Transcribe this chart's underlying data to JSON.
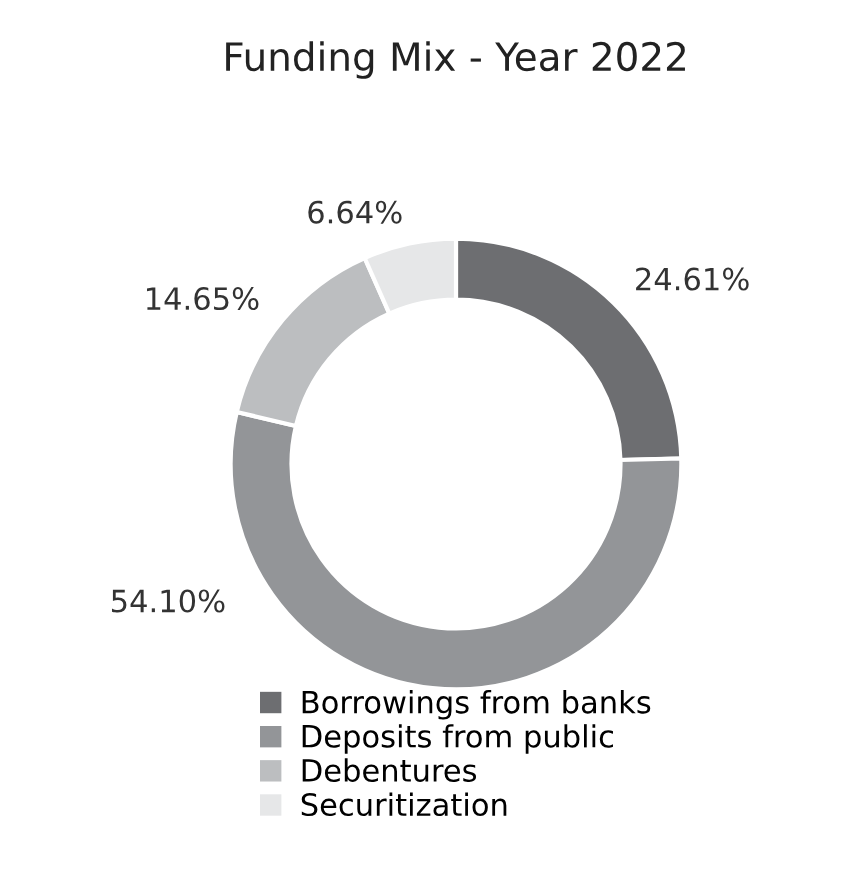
{
  "chart_data": {
    "type": "donut",
    "title": "Funding Mix - Year 2022",
    "categories": [
      "Borrowings from banks",
      "Deposits from public",
      "Debentures",
      "Securitization"
    ],
    "values": [
      24.61,
      54.1,
      14.65,
      6.64
    ],
    "value_labels": [
      "24.61%",
      "54.10%",
      "14.65%",
      "6.64%"
    ],
    "colors": [
      "#6d6e71",
      "#939598",
      "#bcbec0",
      "#e6e7e8"
    ],
    "legend": "bottom"
  }
}
